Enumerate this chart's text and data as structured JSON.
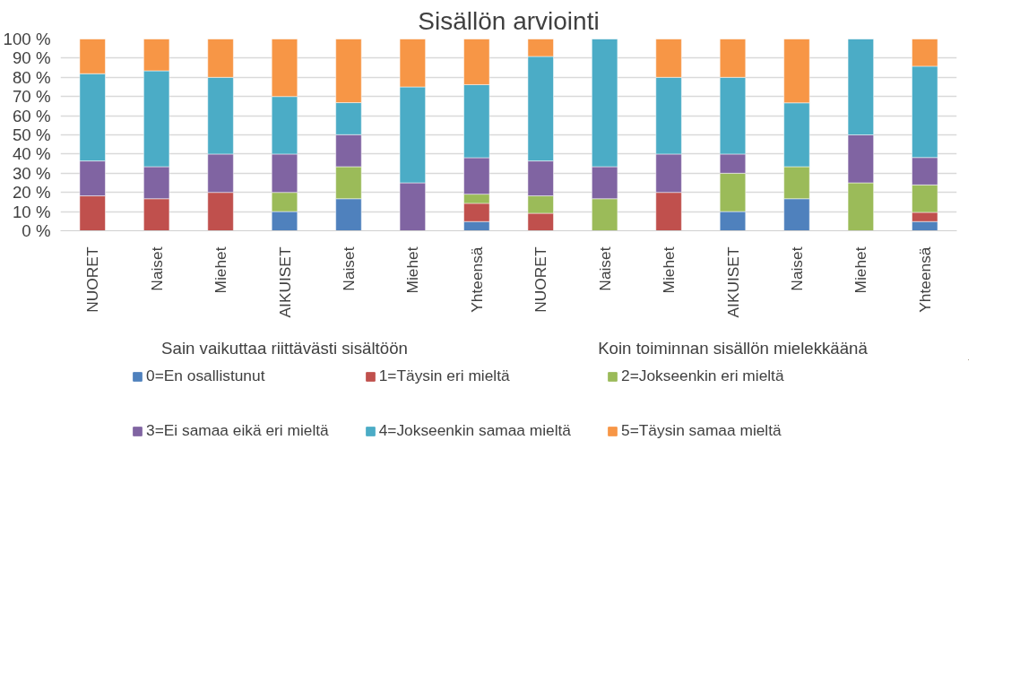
{
  "chart_data": {
    "type": "bar",
    "title": "Sisällön arviointi",
    "stacked": true,
    "categories": [
      "NUORET",
      "Naiset",
      "Miehet",
      "AIKUISET",
      "Naiset",
      "Miehet",
      "Yhteensä",
      "NUORET",
      "Naiset",
      "Miehet",
      "AIKUISET",
      "Naiset",
      "Miehet",
      "Yhteensä"
    ],
    "annotations": [
      "Sain vaikuttaa riittävästi sisältöön",
      "Koin toiminnan sisällön mielekkäänä"
    ],
    "series": [
      {
        "name": "0=En osallistunut",
        "color": "#4f81bd",
        "values": [
          0,
          0,
          0,
          10,
          16.7,
          0,
          4.8,
          0,
          0,
          0,
          10,
          16.7,
          0,
          4.8
        ]
      },
      {
        "name": "1=Täysin eri mieltä",
        "color": "#c0504d",
        "values": [
          18.2,
          16.7,
          20,
          0,
          0,
          0,
          9.5,
          9.1,
          0,
          20,
          0,
          0,
          0,
          4.8
        ]
      },
      {
        "name": "2=Jokseenkin eri mieltä",
        "color": "#9bbb59",
        "values": [
          0,
          0,
          0,
          10,
          16.7,
          0,
          4.8,
          9.1,
          16.7,
          0,
          20,
          16.7,
          25,
          14.3
        ]
      },
      {
        "name": "3=Ei samaa eikä eri mieltä",
        "color": "#8064a2",
        "values": [
          18.2,
          16.7,
          20,
          20,
          16.7,
          25,
          19,
          18.2,
          16.7,
          20,
          10,
          0,
          25,
          14.3
        ]
      },
      {
        "name": "4=Jokseenkin samaa mieltä",
        "color": "#4bacc6",
        "values": [
          45.5,
          50,
          40,
          30,
          16.7,
          50,
          38.1,
          54.5,
          66.7,
          40,
          40,
          33.3,
          50,
          47.6
        ]
      },
      {
        "name": "5=Täysin samaa mieltä",
        "color": "#f79646",
        "values": [
          18.2,
          16.7,
          20,
          30,
          33.3,
          25,
          23.8,
          9.1,
          0,
          20,
          20,
          33.3,
          0,
          14.3
        ]
      }
    ],
    "ylim": [
      0,
      100
    ],
    "yticks": [
      {
        "value": 0,
        "label": "0 %"
      },
      {
        "value": 10,
        "label": "10 %"
      },
      {
        "value": 20,
        "label": "20 %"
      },
      {
        "value": 30,
        "label": "30 %"
      },
      {
        "value": 40,
        "label": "40 %"
      },
      {
        "value": 50,
        "label": "50 %"
      },
      {
        "value": 60,
        "label": "60 %"
      },
      {
        "value": 70,
        "label": "70 %"
      },
      {
        "value": 80,
        "label": "80 %"
      },
      {
        "value": 90,
        "label": "90 %"
      },
      {
        "value": 100,
        "label": "100 %"
      }
    ],
    "grid": "y",
    "legend": "bottom"
  }
}
